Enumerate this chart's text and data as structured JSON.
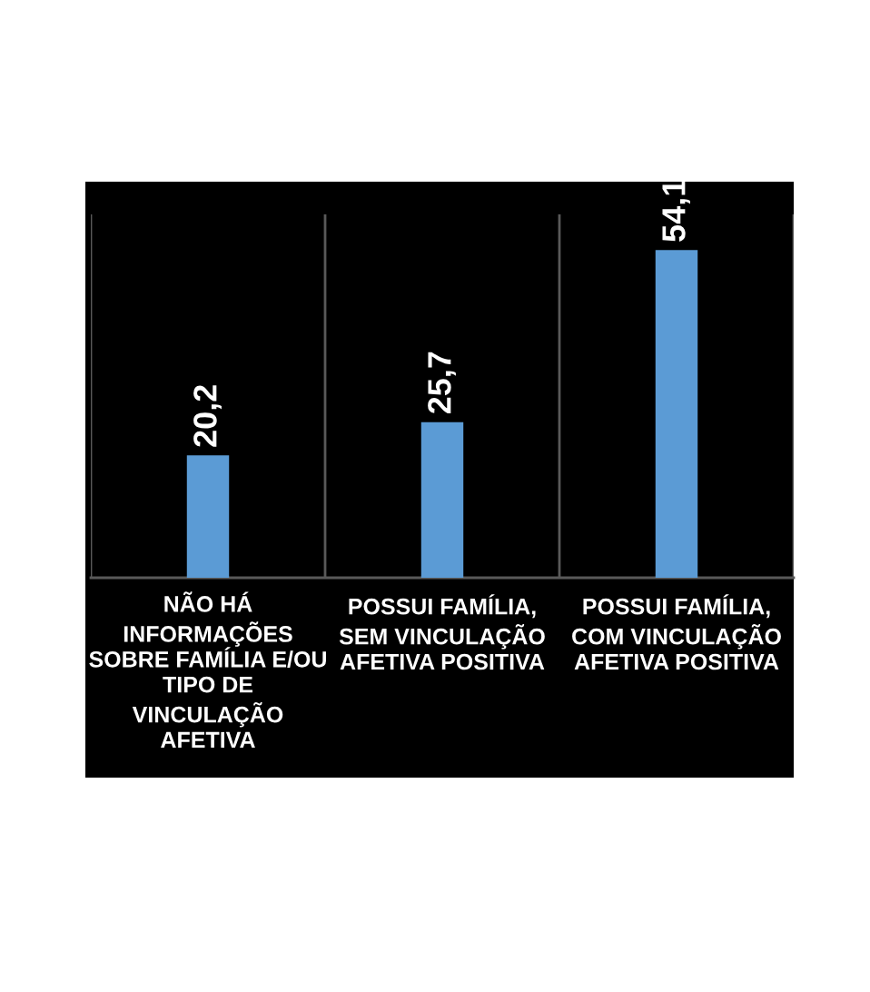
{
  "chart_data": {
    "type": "bar",
    "categories": [
      "NÃO HÁ\nINFORMAÇÕES\nSOBRE FAMÍLIA E/OU\nTIPO DE\nVINCULAÇÃO\nAFETIVA",
      "POSSUI FAMÍLIA,\nSEM VINCULAÇÃO\nAFETIVA POSITIVA",
      "POSSUI FAMÍLIA,\nCOM VINCULAÇÃO\nAFETIVA POSITIVA"
    ],
    "values": [
      20.2,
      25.7,
      54.1
    ],
    "color": "#5b9bd5",
    "value_labels": [
      "20,2",
      "25,7",
      "54,1"
    ],
    "ylim": [
      0,
      60
    ],
    "grid": "x",
    "tick_labels": "x"
  }
}
